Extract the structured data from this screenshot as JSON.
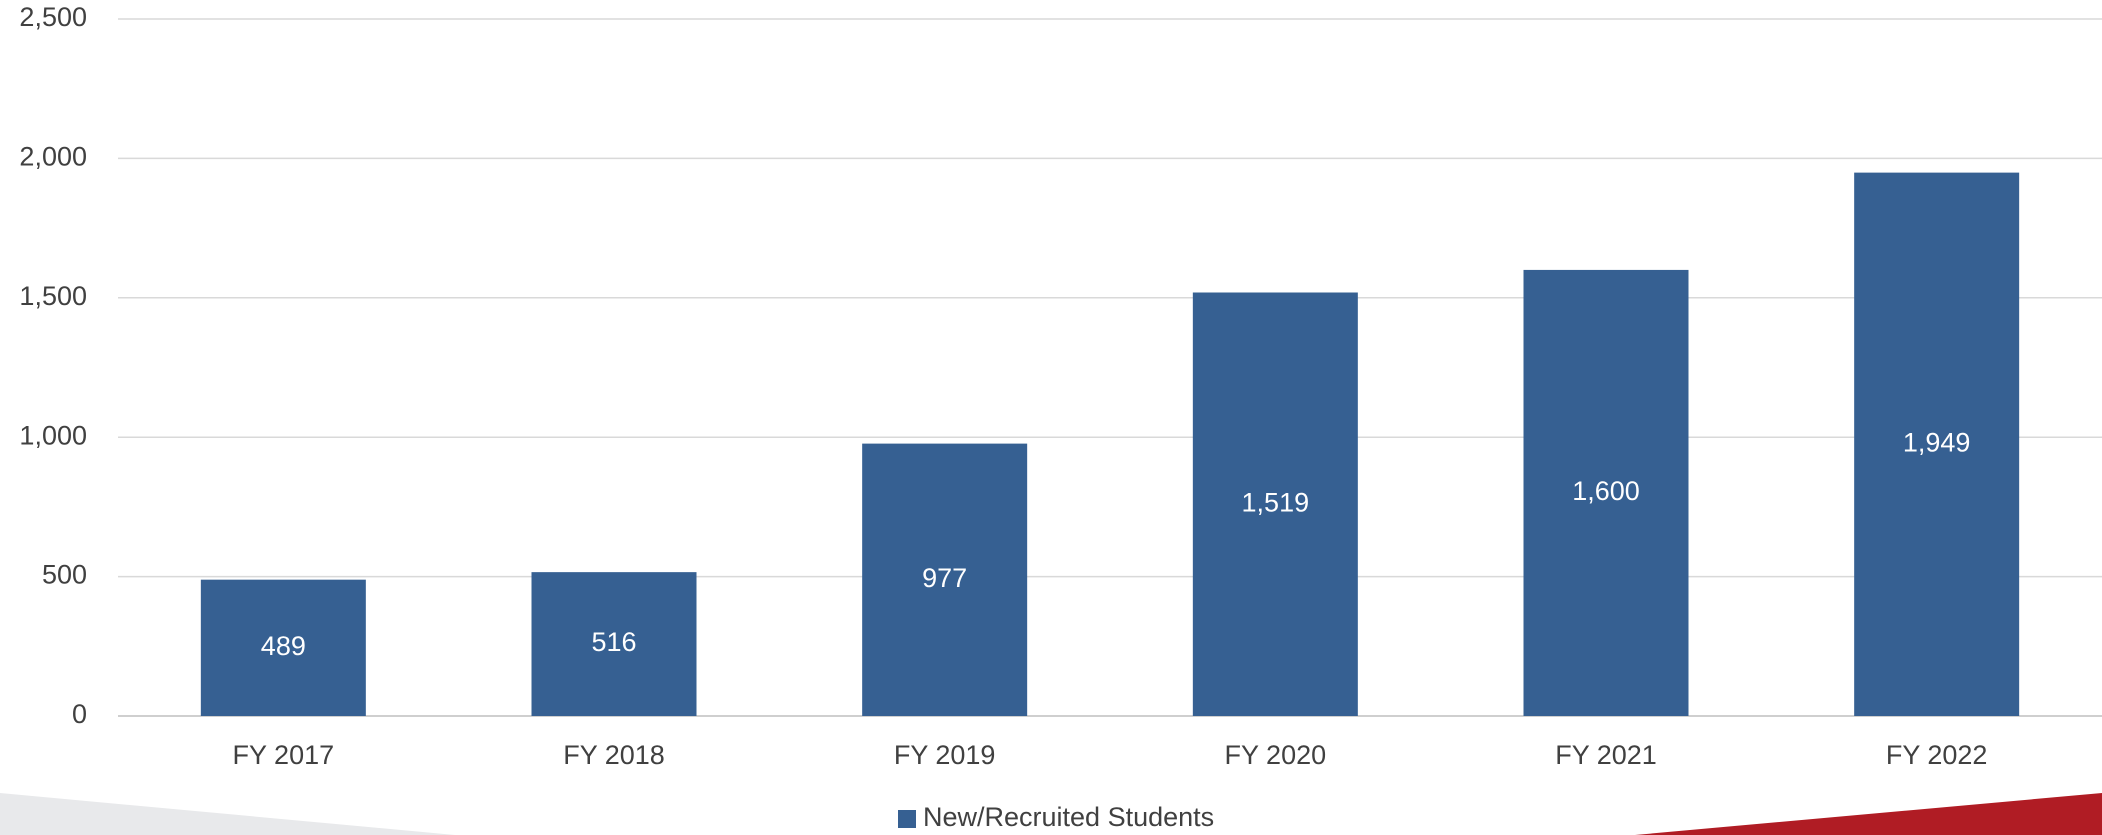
{
  "chart_data": {
    "type": "bar",
    "categories": [
      "FY 2017",
      "FY 2018",
      "FY 2019",
      "FY 2020",
      "FY 2021",
      "FY 2022"
    ],
    "series": [
      {
        "name": "New/Recruited Students",
        "color": "#366092",
        "values": [
          489,
          516,
          977,
          1519,
          1600,
          1949
        ],
        "value_labels": [
          "489",
          "516",
          "977",
          "1,519",
          "1,600",
          "1,949"
        ]
      }
    ],
    "ylim": [
      0,
      2500
    ],
    "yticks": [
      0,
      500,
      {
        "value": 1000,
        "label": "1,000"
      },
      {
        "value": 1500,
        "label": "1,500"
      },
      {
        "value": 2000,
        "label": "2,000"
      },
      {
        "value": 2500,
        "label": "2,500"
      }
    ],
    "grid": true,
    "legend": "bottom"
  }
}
